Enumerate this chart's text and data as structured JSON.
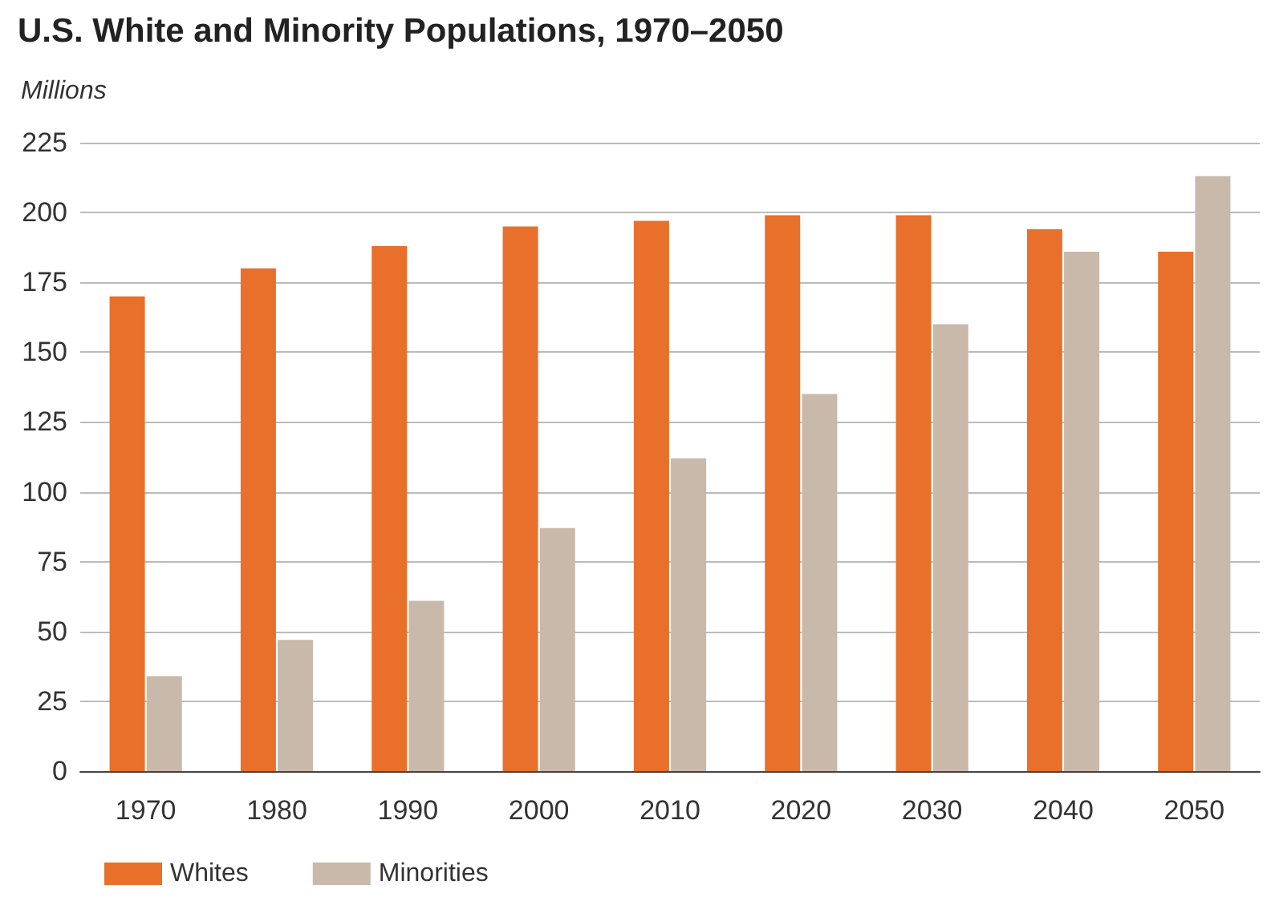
{
  "chart_data": {
    "type": "bar",
    "title": "U.S. White and Minority Populations, 1970–2050",
    "ylabel": "Millions",
    "categories": [
      "1970",
      "1980",
      "1990",
      "2000",
      "2010",
      "2020",
      "2030",
      "2040",
      "2050"
    ],
    "series": [
      {
        "name": "Whites",
        "color": "#e8702a",
        "values": [
          170,
          180,
          188,
          195,
          197,
          199,
          199,
          194,
          186
        ]
      },
      {
        "name": "Minorities",
        "color": "#c9b9aa",
        "values": [
          34,
          47,
          61,
          87,
          112,
          135,
          160,
          186,
          213
        ]
      }
    ],
    "ylim": [
      0,
      225
    ],
    "yticks": [
      0,
      25,
      50,
      75,
      100,
      125,
      150,
      175,
      200,
      225
    ],
    "grid": "y",
    "legend": "bottom left"
  }
}
